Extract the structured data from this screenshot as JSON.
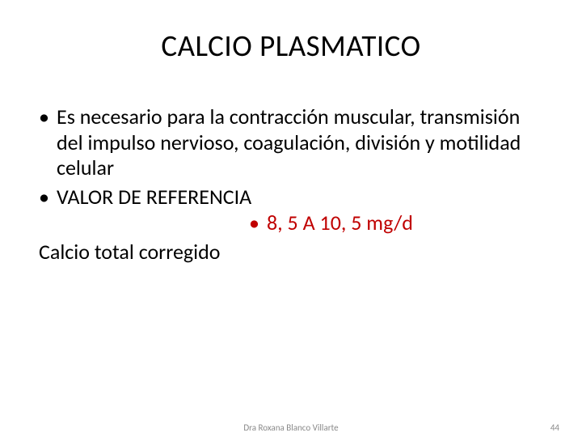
{
  "title": "CALCIO PLASMATICO",
  "bullets": {
    "item1": "Es necesario para la contracción muscular, transmisión del impulso nervioso, coagulación, división y motilidad celular",
    "item2": "VALOR DE REFERENCIA",
    "ref_value": "8, 5 A 10, 5 mg/d",
    "closing": "Calcio total corregido"
  },
  "footer": {
    "author": "Dra Roxana Blanco Villarte",
    "page": "44"
  },
  "colors": {
    "ref_value": "#c00000",
    "footer_text": "#888888",
    "text": "#000000",
    "background": "#ffffff"
  },
  "fonts": {
    "title_size_pt": 37,
    "body_size_pt": 26,
    "footer_size_pt": 11
  }
}
